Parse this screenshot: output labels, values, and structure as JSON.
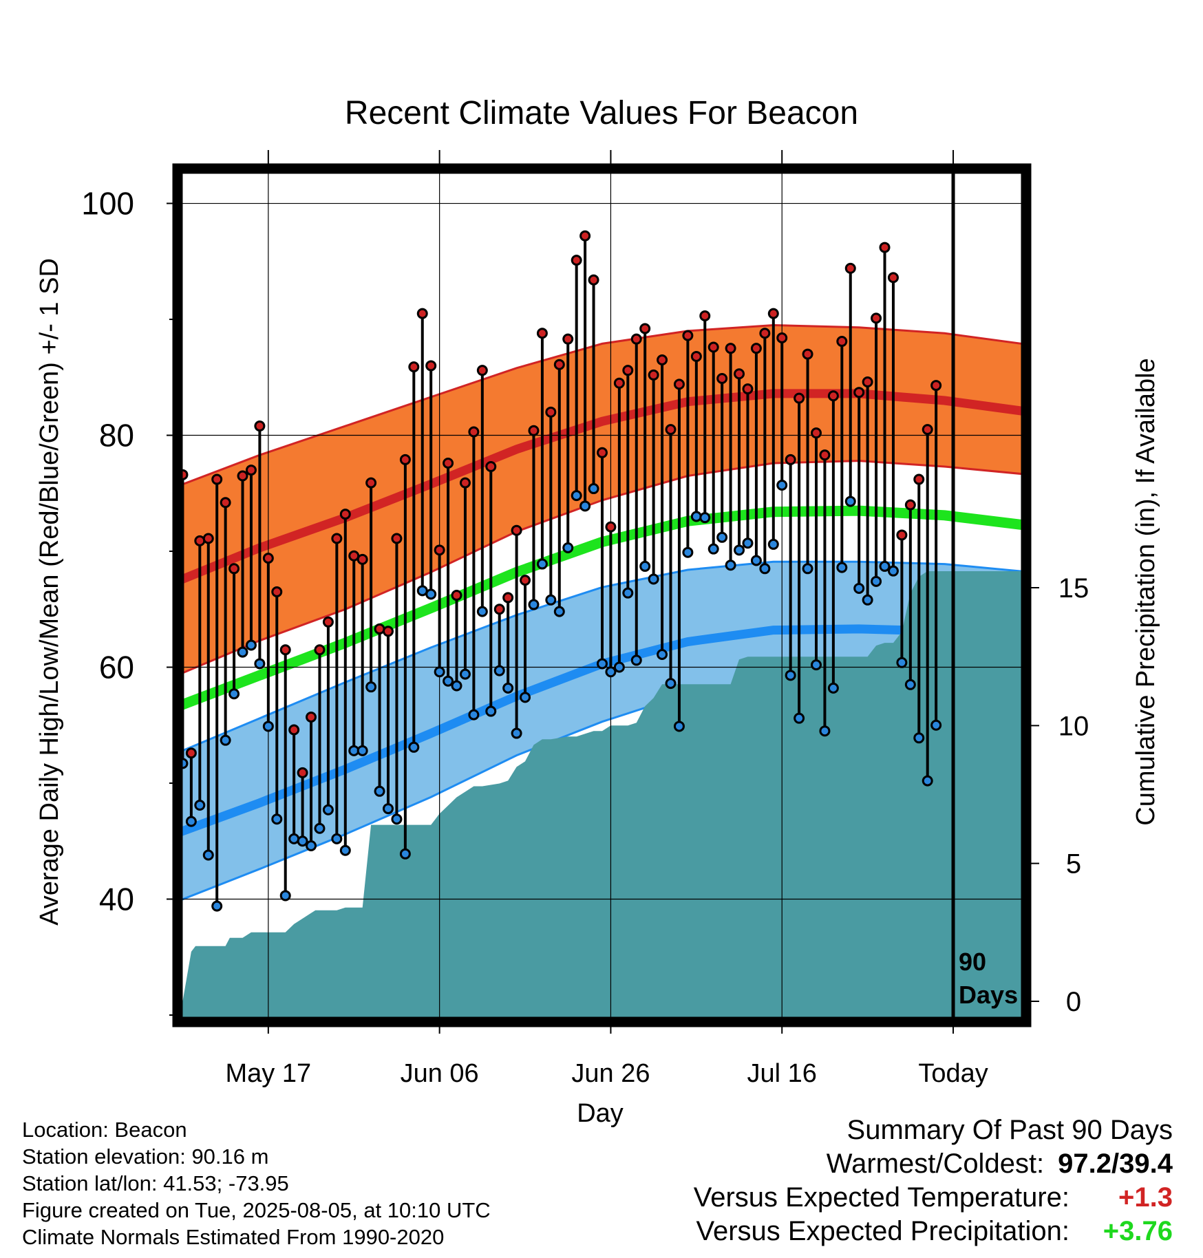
{
  "chart_data": {
    "type": "line",
    "title": "Recent Climate Values For Beacon",
    "xlabel": "Day",
    "ylabel": "Average Daily High/Low/Mean (Red/Blue/Green) +/- 1 SD",
    "y2label": "Cumulative Precipitation (in), If Available",
    "xticks": [
      {
        "day": 11,
        "label": "May 17"
      },
      {
        "day": 31,
        "label": "Jun 06"
      },
      {
        "day": 51,
        "label": "Jun 26"
      },
      {
        "day": 71,
        "label": "Jul 16"
      },
      {
        "day": 91,
        "label": "Today"
      }
    ],
    "yticks": [
      40,
      60,
      80,
      100
    ],
    "y2ticks": [
      0,
      5,
      10,
      15
    ],
    "ylim": [
      30,
      103
    ],
    "y2lim": [
      -0.5,
      30.2
    ],
    "xlim": [
      0,
      100
    ],
    "marker_label": "90\nDays",
    "normals": {
      "x": [
        0,
        10,
        20,
        30,
        40,
        50,
        60,
        70,
        80,
        90,
        100
      ],
      "high": [
        67.3,
        70.3,
        72.9,
        75.8,
        78.8,
        81.2,
        82.9,
        83.6,
        83.6,
        83.0,
        82.0
      ],
      "high_sd_upper": [
        75.5,
        78.3,
        80.8,
        83.3,
        85.8,
        87.9,
        89.0,
        89.5,
        89.3,
        88.8,
        87.8
      ],
      "high_sd_lower": [
        59.2,
        62.3,
        65.0,
        68.2,
        71.7,
        74.4,
        76.5,
        77.6,
        77.8,
        77.3,
        76.6
      ],
      "mean": [
        56.5,
        59.3,
        62.1,
        65.1,
        68.2,
        70.8,
        72.6,
        73.4,
        73.5,
        73.1,
        72.2
      ],
      "low": [
        45.6,
        48.3,
        51.2,
        54.3,
        57.5,
        60.3,
        62.2,
        63.2,
        63.3,
        63.1,
        62.4
      ],
      "low_sd_upper": [
        52.5,
        55.6,
        58.7,
        61.7,
        64.5,
        66.9,
        68.4,
        69.1,
        69.1,
        68.9,
        68.2
      ],
      "low_sd_lower": [
        39.7,
        42.6,
        45.6,
        48.8,
        52.4,
        55.3,
        57.7,
        58.6,
        58.7,
        58.5,
        57.5
      ]
    },
    "daily": {
      "x": [
        0,
        1,
        2,
        3,
        4,
        5,
        6,
        7,
        8,
        9,
        10,
        11,
        12,
        13,
        14,
        15,
        16,
        17,
        18,
        19,
        20,
        21,
        22,
        23,
        24,
        25,
        26,
        27,
        28,
        29,
        30,
        31,
        32,
        33,
        34,
        35,
        36,
        37,
        38,
        39,
        40,
        41,
        42,
        43,
        44,
        45,
        46,
        47,
        48,
        49,
        50,
        51,
        52,
        53,
        54,
        55,
        56,
        57,
        58,
        59,
        60,
        61,
        62,
        63,
        64,
        65,
        66,
        67,
        68,
        69,
        70,
        71,
        72,
        73,
        74,
        75,
        76,
        77,
        78,
        79,
        80,
        81,
        82,
        83,
        84,
        85,
        86,
        87,
        88,
        89
      ],
      "high": [
        71.9,
        76.6,
        52.6,
        70.9,
        71.1,
        76.2,
        74.2,
        68.5,
        76.5,
        77.0,
        80.8,
        69.4,
        66.5,
        61.5,
        54.6,
        50.9,
        55.7,
        61.5,
        63.9,
        71.1,
        73.2,
        69.6,
        69.3,
        75.9,
        63.3,
        63.1,
        71.1,
        77.9,
        85.9,
        90.5,
        86.0,
        70.1,
        77.6,
        66.2,
        75.9,
        80.3,
        85.6,
        77.3,
        65.0,
        66.0,
        71.8,
        67.5,
        80.4,
        88.8,
        82.0,
        86.1,
        88.3,
        95.1,
        97.2,
        93.4,
        78.5,
        72.1,
        84.5,
        85.6,
        88.3,
        89.2,
        85.2,
        86.5,
        80.5,
        84.4,
        88.6,
        86.8,
        90.3,
        87.6,
        84.9,
        87.5,
        85.3,
        84.0,
        87.5,
        88.8,
        90.5,
        88.4,
        77.9,
        83.2,
        87.0,
        80.2,
        78.3,
        83.4,
        88.1,
        94.4,
        83.7,
        84.6,
        90.1,
        96.2,
        93.6,
        71.4,
        74.0,
        76.2,
        80.5,
        84.3
      ],
      "low": [
        52.1,
        51.7,
        46.7,
        48.1,
        43.8,
        39.4,
        53.7,
        57.7,
        61.3,
        61.9,
        60.3,
        54.9,
        46.9,
        40.3,
        45.2,
        45.0,
        44.6,
        46.1,
        47.7,
        45.2,
        44.2,
        52.8,
        52.8,
        58.3,
        49.3,
        47.8,
        46.9,
        43.9,
        53.1,
        66.6,
        66.3,
        59.6,
        58.8,
        58.4,
        59.4,
        55.9,
        64.8,
        56.2,
        59.7,
        58.2,
        54.3,
        57.4,
        65.4,
        68.9,
        65.8,
        64.8,
        70.3,
        74.8,
        73.9,
        75.4,
        60.3,
        59.6,
        60.0,
        66.4,
        60.6,
        68.7,
        67.6,
        61.1,
        58.6,
        54.9,
        69.9,
        73.0,
        72.9,
        70.2,
        71.2,
        68.8,
        70.1,
        70.7,
        69.2,
        68.5,
        70.6,
        75.7,
        59.3,
        55.6,
        68.5,
        60.2,
        54.5,
        58.2,
        68.6,
        74.3,
        66.8,
        65.8,
        67.4,
        68.7,
        68.3,
        60.4,
        58.5,
        53.9,
        50.2,
        55.0
      ]
    },
    "precip": {
      "x": [
        1,
        2,
        2.5,
        6,
        6.5,
        8,
        9,
        10,
        11,
        12,
        13,
        14,
        15,
        16,
        16.5,
        19,
        20,
        22,
        23,
        24,
        25,
        30,
        31,
        32,
        33,
        34,
        35,
        36,
        38,
        39,
        40,
        41,
        42,
        43,
        44,
        46,
        47,
        48,
        49,
        50,
        51,
        52,
        53,
        54,
        55,
        56,
        57,
        58,
        59,
        60,
        65,
        66,
        67,
        69,
        70,
        81,
        82,
        83,
        84,
        85,
        86,
        87,
        88,
        88.5,
        91
      ],
      "y": [
        0,
        1.8,
        2.0,
        2.0,
        2.3,
        2.3,
        2.5,
        2.5,
        2.5,
        2.5,
        2.5,
        2.8,
        3.0,
        3.2,
        3.3,
        3.3,
        3.4,
        3.4,
        6.4,
        6.4,
        6.4,
        6.4,
        6.8,
        7.1,
        7.4,
        7.6,
        7.8,
        7.8,
        7.9,
        8.0,
        8.5,
        8.7,
        9.3,
        9.5,
        9.5,
        9.6,
        9.6,
        9.7,
        9.8,
        9.8,
        10.0,
        10.0,
        10.0,
        10.1,
        10.7,
        11.0,
        11.5,
        11.5,
        11.5,
        11.5,
        11.5,
        12.4,
        12.5,
        12.5,
        12.5,
        12.5,
        12.9,
        13.0,
        13.0,
        13.4,
        14.8,
        15.4,
        15.6,
        15.6,
        15.6
      ],
      "end_x": 100
    }
  },
  "footer": {
    "location": "Location: Beacon",
    "elevation": "Station elevation: 90.16 m",
    "latlon": "Station lat/lon: 41.53; -73.95",
    "created": "Figure created on Tue, 2025-08-05, at 10:10 UTC",
    "normals": "Climate Normals Estimated From 1990-2020"
  },
  "summary": {
    "heading": "Summary Of Past 90 Days",
    "warm_cold_label": "Warmest/Coldest:",
    "warm_cold_value": "97.2/39.4",
    "temp_label": "Versus Expected Temperature:",
    "temp_value": "+1.3",
    "precip_label": "Versus Expected Precipitation:",
    "precip_value": "+3.76"
  },
  "colors": {
    "high_band": "#f47a30",
    "high_line": "#d12424",
    "mean_line": "#1de41d",
    "low_band": "#82c0ea",
    "low_line": "#1e8cf2",
    "precip": "#4a9ba2",
    "high_dot": "#cc2222",
    "low_dot": "#2a86dd",
    "temp_value": "#d12424",
    "precip_value": "#1ed81e"
  }
}
